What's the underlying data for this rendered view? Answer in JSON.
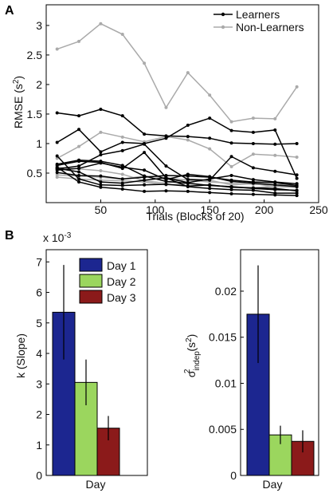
{
  "figure": {
    "panel_a": "A",
    "panel_b": "B"
  },
  "chart_data": [
    {
      "type": "line",
      "panel": "A",
      "xlabel": "Trials (Blocks of 20)",
      "ylabel_main": "RMSE (s",
      "ylabel_sup": "2",
      "ylabel_close": ")",
      "xlim": [
        0,
        250
      ],
      "ylim": [
        0,
        3.35
      ],
      "xticks": [
        50,
        100,
        150,
        200,
        250
      ],
      "yticks": [
        0.5,
        1,
        1.5,
        2,
        2.5,
        3
      ],
      "xtick_labels": [
        "50",
        "100",
        "150",
        "200",
        "250"
      ],
      "ytick_labels": [
        "0.5",
        "1",
        "1.5",
        "2",
        "2.5",
        "3"
      ],
      "legend_position": "top-right",
      "legend": [
        {
          "name": "Learners",
          "color": "#000000",
          "group": "learners"
        },
        {
          "name": "Non-Learners",
          "color": "#aaaaaa",
          "group": "nonlearners"
        }
      ],
      "x": [
        10,
        30,
        50,
        70,
        90,
        110,
        130,
        150,
        170,
        190,
        210,
        230
      ],
      "series": [
        {
          "group": "nonlearners",
          "values": [
            2.6,
            2.73,
            3.03,
            2.85,
            2.36,
            1.61,
            2.2,
            1.82,
            1.37,
            1.43,
            1.42,
            1.96
          ]
        },
        {
          "group": "nonlearners",
          "values": [
            0.75,
            0.95,
            1.19,
            1.11,
            1.03,
            1.12,
            1.06,
            0.91,
            0.61,
            0.82,
            0.8,
            0.77
          ]
        },
        {
          "group": "nonlearners",
          "values": [
            0.6,
            0.57,
            0.54,
            0.48,
            0.37,
            0.33,
            0.4,
            0.38,
            0.3,
            0.32,
            0.27,
            0.26
          ]
        },
        {
          "group": "nonlearners",
          "values": [
            0.47,
            0.45,
            0.43,
            0.4,
            0.45,
            0.42,
            0.38,
            0.35,
            0.33,
            0.31,
            0.3,
            0.32
          ]
        },
        {
          "group": "nonlearners",
          "values": [
            0.43,
            0.4,
            0.38,
            0.37,
            0.35,
            0.3,
            0.32,
            0.29,
            0.27,
            0.25,
            0.28,
            0.3
          ]
        },
        {
          "group": "learners",
          "values": [
            1.52,
            1.47,
            1.58,
            1.47,
            1.16,
            1.13,
            1.12,
            1.09,
            1.01,
            1.0,
            0.99,
            1.0
          ]
        },
        {
          "group": "learners",
          "values": [
            1.02,
            1.24,
            0.86,
            1.02,
            1.0,
            1.09,
            1.31,
            1.43,
            1.22,
            1.19,
            1.23,
            0.41
          ]
        },
        {
          "group": "learners",
          "values": [
            0.57,
            0.62,
            0.81,
            0.88,
            0.99,
            0.62,
            0.39,
            0.38,
            0.78,
            0.59,
            0.53,
            0.47
          ]
        },
        {
          "group": "learners",
          "values": [
            0.63,
            0.7,
            0.68,
            0.58,
            0.85,
            0.42,
            0.34,
            0.4,
            0.46,
            0.39,
            0.35,
            0.32
          ]
        },
        {
          "group": "learners",
          "values": [
            0.55,
            0.58,
            0.67,
            0.6,
            0.55,
            0.39,
            0.48,
            0.44,
            0.36,
            0.33,
            0.3,
            0.27
          ]
        },
        {
          "group": "learners",
          "values": [
            0.65,
            0.72,
            0.7,
            0.63,
            0.45,
            0.36,
            0.33,
            0.29,
            0.27,
            0.24,
            0.22,
            0.21
          ]
        },
        {
          "group": "learners",
          "values": [
            0.51,
            0.46,
            0.45,
            0.4,
            0.43,
            0.46,
            0.45,
            0.43,
            0.38,
            0.35,
            0.34,
            0.29
          ]
        },
        {
          "group": "learners",
          "values": [
            0.79,
            0.4,
            0.3,
            0.29,
            0.3,
            0.31,
            0.28,
            0.3,
            0.26,
            0.25,
            0.24,
            0.2
          ]
        },
        {
          "group": "learners",
          "values": [
            0.58,
            0.52,
            0.35,
            0.33,
            0.38,
            0.42,
            0.27,
            0.24,
            0.22,
            0.21,
            0.16,
            0.16
          ]
        },
        {
          "group": "learners",
          "values": [
            0.6,
            0.35,
            0.26,
            0.23,
            0.19,
            0.2,
            0.19,
            0.17,
            0.15,
            0.14,
            0.13,
            0.12
          ]
        }
      ]
    },
    {
      "type": "bar",
      "panel": "B-left",
      "multiplier_base": "x 10",
      "multiplier_exp": "-3",
      "ylabel": "k (Slope)",
      "xlabel": "Day",
      "ylim": [
        0,
        7.4
      ],
      "yticks": [
        0,
        1,
        2,
        3,
        4,
        5,
        6,
        7
      ],
      "ytick_labels": [
        "0",
        "1",
        "2",
        "3",
        "4",
        "5",
        "6",
        "7"
      ],
      "legend_position": "top-left",
      "series": [
        {
          "name": "Day 1",
          "color": "#1c2690",
          "value": 5.35,
          "err": 1.55
        },
        {
          "name": "Day 2",
          "color": "#9bd65e",
          "value": 3.05,
          "err": 0.75
        },
        {
          "name": "Day 3",
          "color": "#8b1a1a",
          "value": 1.55,
          "err": 0.4
        }
      ]
    },
    {
      "type": "bar",
      "panel": "B-right",
      "ylabel_sym": "σ",
      "ylabel_sub": "indep",
      "ylabel_sup": "2",
      "ylabel_unit": "(s",
      "ylabel_unit_sup": "2",
      "ylabel_close": ")",
      "xlabel": "Day",
      "ylim": [
        0,
        0.0245
      ],
      "yticks": [
        0,
        0.005,
        0.01,
        0.015,
        0.02
      ],
      "ytick_labels": [
        "0",
        "0.005",
        "0.01",
        "0.015",
        "0.02"
      ],
      "series": [
        {
          "name": "Day 1",
          "color": "#1c2690",
          "value": 0.0175,
          "err": 0.0053
        },
        {
          "name": "Day 2",
          "color": "#9bd65e",
          "value": 0.0044,
          "err": 0.001
        },
        {
          "name": "Day 3",
          "color": "#8b1a1a",
          "value": 0.0037,
          "err": 0.0012
        }
      ]
    }
  ]
}
